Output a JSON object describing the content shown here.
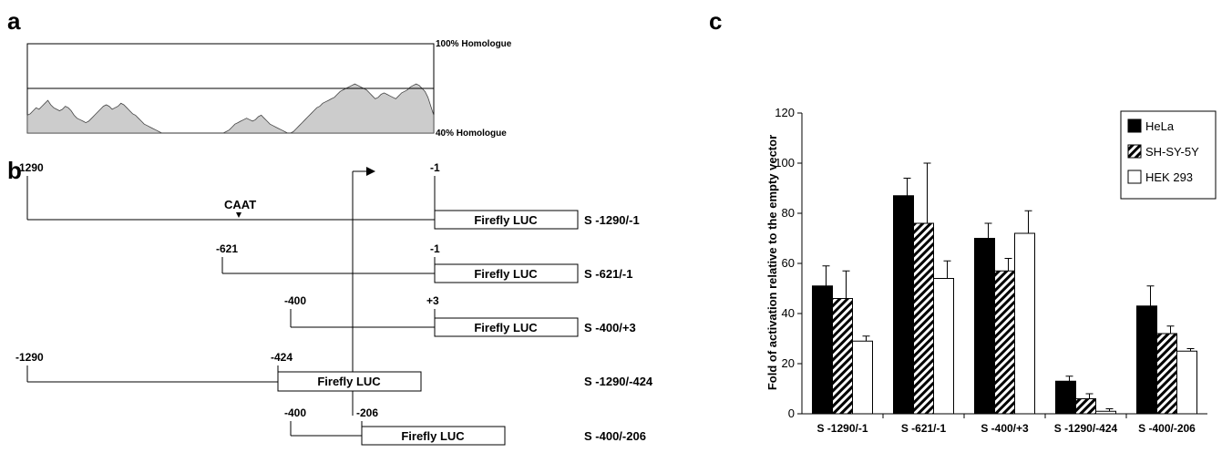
{
  "panels": {
    "a": "a",
    "b": "b",
    "c": "c"
  },
  "homology": {
    "top_label": "100% Homologue",
    "bottom_label": "40% Homologue",
    "profile_percent": [
      52,
      53,
      55,
      57,
      56,
      58,
      60,
      62,
      59,
      57,
      56,
      55,
      56,
      58,
      57,
      55,
      52,
      50,
      49,
      48,
      47,
      48,
      50,
      52,
      54,
      56,
      58,
      59,
      58,
      56,
      57,
      58,
      60,
      59,
      57,
      55,
      53,
      52,
      50,
      48,
      46,
      45,
      44,
      43,
      42,
      41,
      40,
      40,
      40,
      40,
      40,
      40,
      40,
      40,
      40,
      40,
      40,
      40,
      40,
      40,
      40,
      40,
      40,
      40,
      40,
      40,
      40,
      40,
      41,
      42,
      44,
      46,
      47,
      48,
      49,
      50,
      49,
      48,
      49,
      51,
      52,
      50,
      48,
      46,
      45,
      44,
      43,
      42,
      41,
      40,
      40,
      41,
      43,
      45,
      47,
      49,
      51,
      53,
      55,
      57,
      58,
      60,
      61,
      62,
      63,
      64,
      66,
      68,
      69,
      70,
      71,
      72,
      73,
      72,
      71,
      70,
      69,
      67,
      65,
      63,
      64,
      66,
      67,
      66,
      65,
      64,
      63,
      65,
      67,
      68,
      69,
      71,
      72,
      73,
      72,
      70,
      68,
      64,
      58,
      52
    ]
  },
  "constructs_panel": {
    "caat_label": "CAAT",
    "box_label": "Firefly LUC",
    "constructs": [
      {
        "name": "S -1290/-1",
        "start_label": "-1290",
        "end_label": "-1"
      },
      {
        "name": "S -621/-1",
        "start_label": "-621",
        "end_label": "-1"
      },
      {
        "name": "S -400/+3",
        "start_label": "-400",
        "end_label": "+3"
      },
      {
        "name": "S -1290/-424",
        "start_label": "-1290",
        "end_label": "-424"
      },
      {
        "name": "S -400/-206",
        "start_label": "-400",
        "end_label": "-206"
      }
    ]
  },
  "chart_data": {
    "type": "bar",
    "title": "",
    "xlabel": "",
    "ylabel": "Fold of activation relative to the empty vector",
    "ylim": [
      0,
      120
    ],
    "yticks": [
      0,
      20,
      40,
      60,
      80,
      100,
      120
    ],
    "categories": [
      "S -1290/-1",
      "S -621/-1",
      "S -400/+3",
      "S -1290/-424",
      "S -400/-206"
    ],
    "series": [
      {
        "name": "HeLa",
        "fill": "solid",
        "values": [
          51,
          87,
          70,
          13,
          43
        ],
        "errors": [
          8,
          7,
          6,
          2,
          8
        ]
      },
      {
        "name": "SH-SY-5Y",
        "fill": "hatched",
        "values": [
          46,
          76,
          57,
          6,
          32
        ],
        "errors": [
          11,
          24,
          5,
          2,
          3
        ]
      },
      {
        "name": "HEK 293",
        "fill": "open",
        "values": [
          29,
          54,
          72,
          1,
          25
        ],
        "errors": [
          2,
          7,
          9,
          1,
          1
        ]
      }
    ],
    "legend_position": "top-right",
    "grid": false
  }
}
